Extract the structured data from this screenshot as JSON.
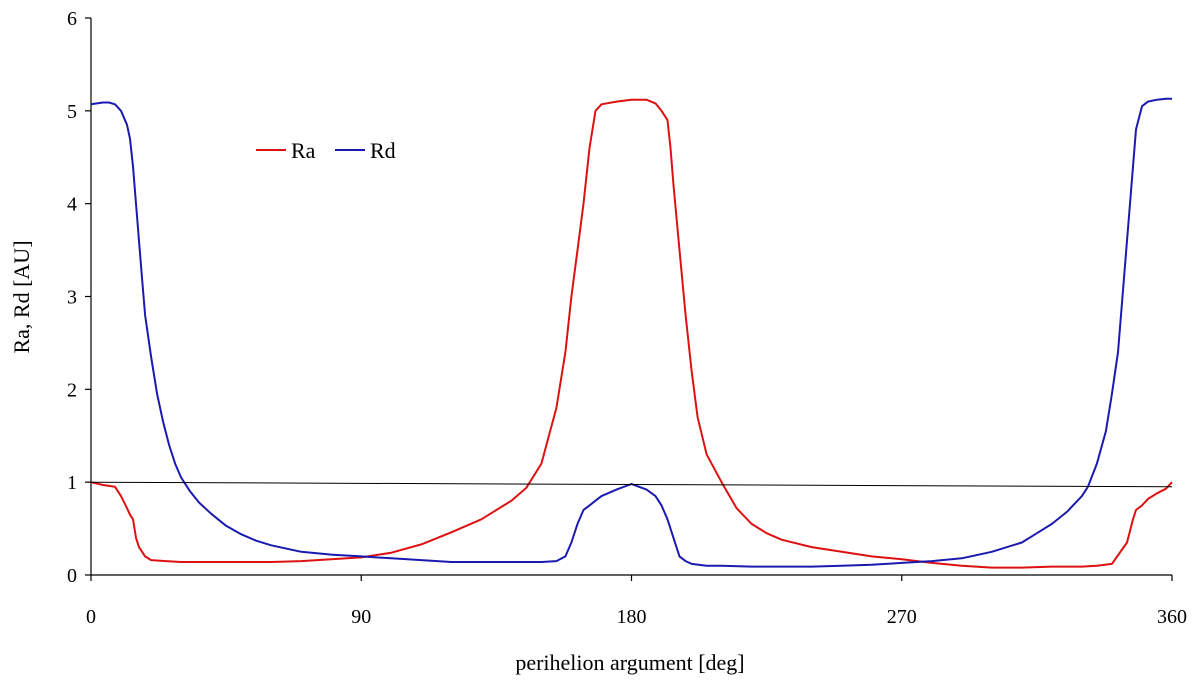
{
  "chart_data": {
    "type": "line",
    "title": "",
    "xlabel": "perihelion argument [deg]",
    "ylabel": "Ra, Rd [AU]",
    "xlim": [
      0,
      360
    ],
    "ylim": [
      0,
      6
    ],
    "x_ticks": [
      0,
      90,
      180,
      270,
      360
    ],
    "y_ticks": [
      0,
      1,
      2,
      3,
      4,
      5,
      6
    ],
    "grid": false,
    "legend_position": "upper-left, inside plot",
    "series": [
      {
        "name": "Ra",
        "color": "#dd1111",
        "x": [
          0,
          4,
          8,
          10,
          12,
          13,
          14,
          15,
          16,
          18,
          20,
          25,
          30,
          40,
          50,
          60,
          70,
          80,
          90,
          100,
          110,
          120,
          130,
          140,
          145,
          150,
          155,
          158,
          160,
          162,
          164,
          166,
          168,
          170,
          175,
          180,
          185,
          188,
          190,
          192,
          193,
          194,
          196,
          198,
          200,
          202,
          205,
          210,
          215,
          220,
          225,
          230,
          240,
          250,
          260,
          270,
          280,
          290,
          300,
          310,
          320,
          330,
          335,
          340,
          345,
          347,
          348,
          350,
          352,
          355,
          358,
          360
        ],
        "y": [
          1.0,
          0.97,
          0.95,
          0.85,
          0.72,
          0.65,
          0.6,
          0.4,
          0.3,
          0.2,
          0.16,
          0.15,
          0.14,
          0.14,
          0.14,
          0.14,
          0.15,
          0.17,
          0.19,
          0.24,
          0.33,
          0.46,
          0.6,
          0.8,
          0.94,
          1.2,
          1.8,
          2.4,
          3.0,
          3.5,
          4.0,
          4.6,
          5.0,
          5.07,
          5.1,
          5.12,
          5.12,
          5.08,
          5.0,
          4.9,
          4.6,
          4.2,
          3.5,
          2.8,
          2.2,
          1.7,
          1.3,
          1.0,
          0.72,
          0.55,
          0.45,
          0.38,
          0.3,
          0.25,
          0.2,
          0.17,
          0.13,
          0.1,
          0.08,
          0.08,
          0.09,
          0.09,
          0.1,
          0.12,
          0.35,
          0.6,
          0.7,
          0.75,
          0.82,
          0.88,
          0.93,
          1.0
        ]
      },
      {
        "name": "Rd",
        "color": "#1a1ab0",
        "x": [
          0,
          2,
          4,
          6,
          8,
          10,
          12,
          13,
          14,
          15,
          16,
          17,
          18,
          20,
          22,
          24,
          26,
          28,
          30,
          33,
          36,
          40,
          45,
          50,
          55,
          60,
          70,
          80,
          90,
          100,
          110,
          120,
          130,
          140,
          150,
          155,
          158,
          160,
          162,
          164,
          166,
          168,
          170,
          175,
          180,
          185,
          188,
          190,
          192,
          194,
          196,
          198,
          200,
          205,
          210,
          220,
          230,
          240,
          250,
          260,
          270,
          280,
          290,
          300,
          310,
          315,
          320,
          325,
          330,
          332,
          335,
          338,
          340,
          342,
          343,
          344,
          345,
          346,
          347,
          348,
          350,
          352,
          355,
          358,
          360
        ],
        "y": [
          5.07,
          5.08,
          5.09,
          5.09,
          5.07,
          5.0,
          4.85,
          4.7,
          4.4,
          4.0,
          3.6,
          3.2,
          2.8,
          2.35,
          1.95,
          1.65,
          1.4,
          1.2,
          1.05,
          0.9,
          0.78,
          0.66,
          0.53,
          0.44,
          0.37,
          0.32,
          0.25,
          0.22,
          0.2,
          0.18,
          0.16,
          0.14,
          0.14,
          0.14,
          0.14,
          0.15,
          0.2,
          0.35,
          0.55,
          0.7,
          0.75,
          0.8,
          0.85,
          0.92,
          0.98,
          0.92,
          0.85,
          0.75,
          0.6,
          0.4,
          0.2,
          0.15,
          0.12,
          0.1,
          0.1,
          0.09,
          0.09,
          0.09,
          0.1,
          0.11,
          0.13,
          0.15,
          0.18,
          0.25,
          0.35,
          0.45,
          0.55,
          0.68,
          0.85,
          0.95,
          1.2,
          1.55,
          1.95,
          2.4,
          2.8,
          3.2,
          3.6,
          4.0,
          4.4,
          4.8,
          5.05,
          5.1,
          5.12,
          5.13,
          5.13
        ]
      },
      {
        "name": "",
        "color": "#000000",
        "x": [
          0,
          360
        ],
        "y": [
          1.0,
          0.95
        ]
      }
    ],
    "legend": [
      "Ra",
      "Rd"
    ]
  }
}
